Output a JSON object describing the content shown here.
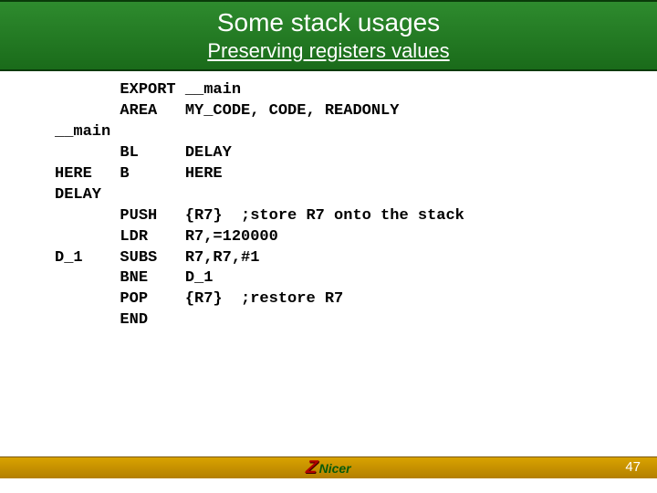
{
  "colors": {
    "header_gradient_top": "#2e8b2e",
    "header_gradient_bottom": "#1a6b1a",
    "header_border": "#0a3a0a",
    "footer_gradient_top": "#d9a300",
    "footer_gradient_bottom": "#b37f00",
    "footer_border": "#7a5600",
    "code_color": "#000000",
    "background": "#ffffff",
    "logo_z_color": "#b00000",
    "logo_text_color": "#0a5a0a",
    "page_num_color": "#ffffff"
  },
  "typography": {
    "title_fontsize": 28,
    "subtitle_fontsize": 22,
    "code_fontsize": 17,
    "code_font": "Courier New",
    "code_weight": "bold"
  },
  "header": {
    "title": "Some stack usages",
    "subtitle": "Preserving registers values"
  },
  "code": {
    "lines": [
      "       EXPORT __main",
      "       AREA   MY_CODE, CODE, READONLY",
      "__main",
      "       BL     DELAY",
      "HERE   B      HERE",
      "DELAY",
      "       PUSH   {R7}  ;store R7 onto the stack",
      "       LDR    R7,=120000",
      "D_1    SUBS   R7,R7,#1",
      "       BNE    D_1",
      "       POP    {R7}  ;restore R7",
      "       END"
    ]
  },
  "footer": {
    "logo_z": "Z",
    "logo_text": "Nicer",
    "page_number": "47"
  }
}
